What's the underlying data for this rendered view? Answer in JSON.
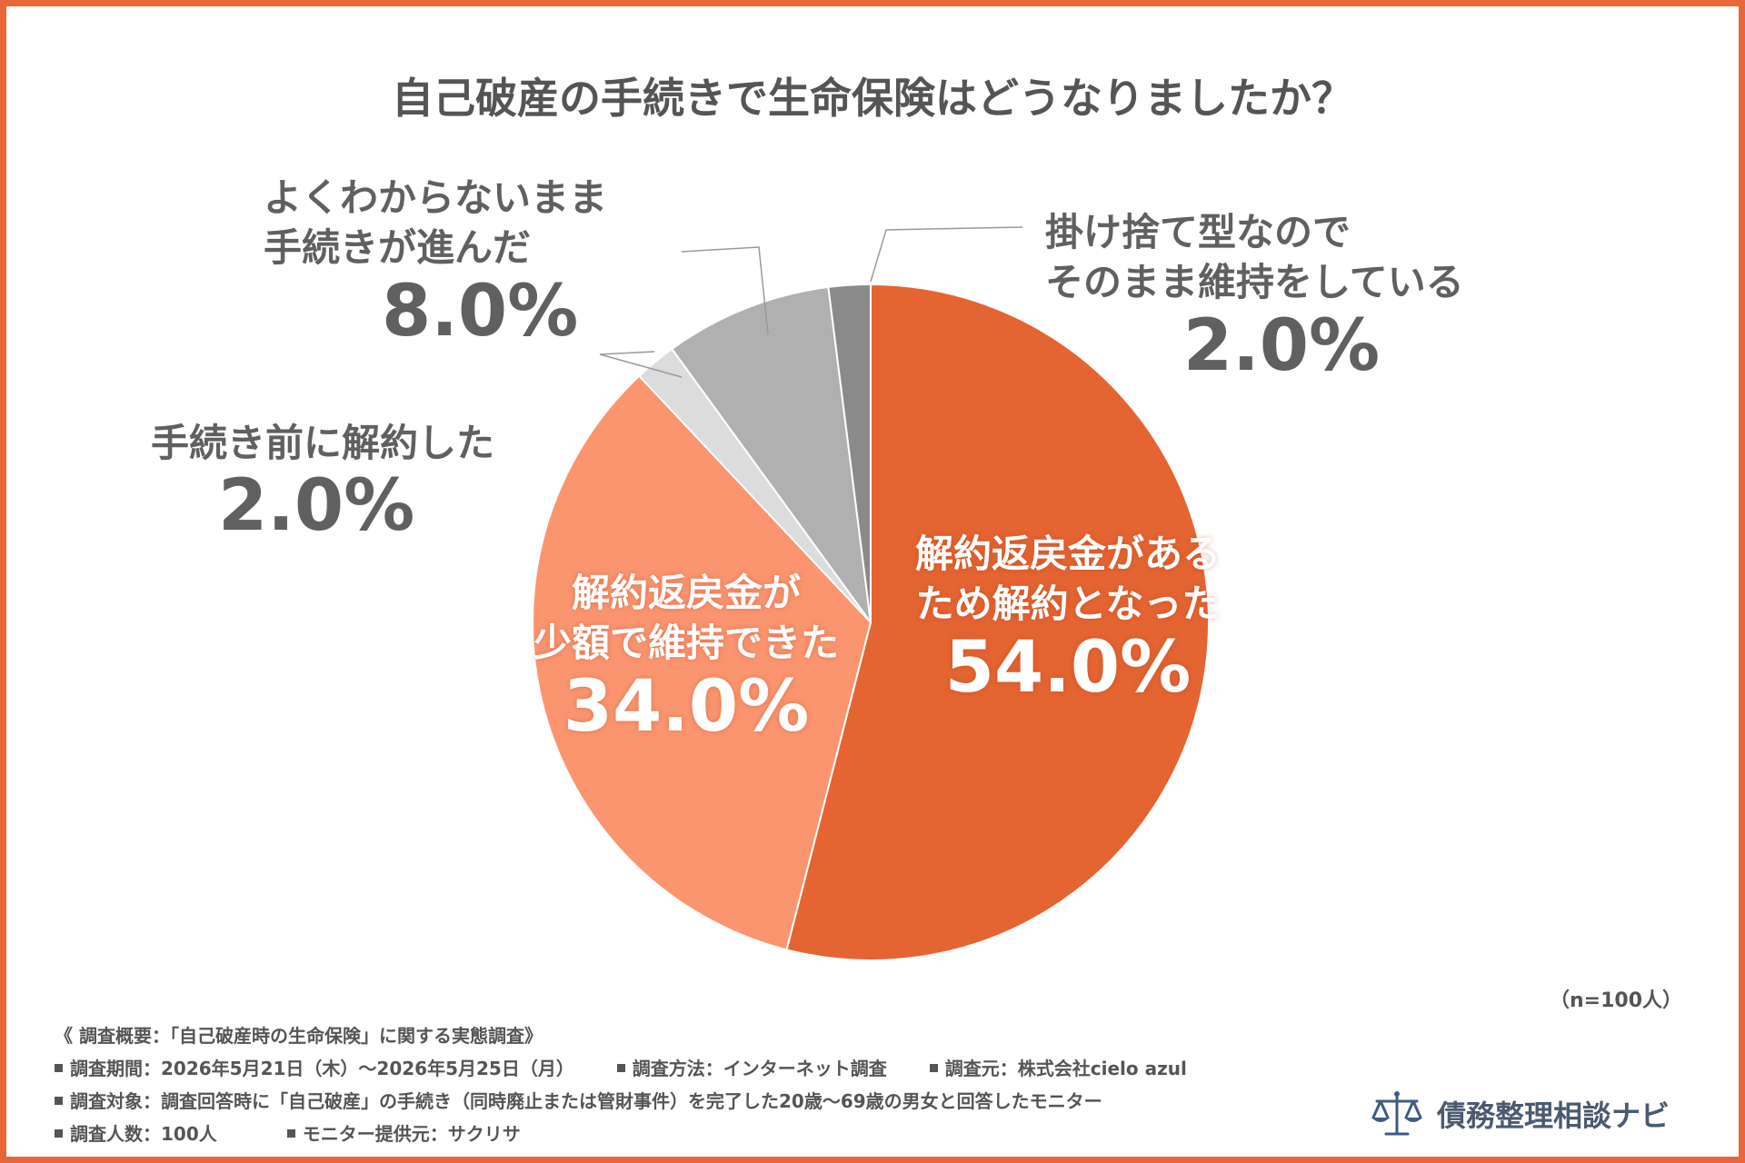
{
  "title": "自己破産の手続きで生命保険はどうなりましたか？",
  "chart_data": {
    "type": "pie",
    "title": "自己破産の手続きで生命保険はどうなりましたか？",
    "slices": [
      {
        "label_lines": [
          "解約返戻金がある",
          "ため解約となった"
        ],
        "value": 54.0,
        "display": "54.0%",
        "color": "#e46432"
      },
      {
        "label_lines": [
          "解約返戻金が",
          "少額で維持できた"
        ],
        "value": 34.0,
        "display": "34.0%",
        "color": "#fb9570"
      },
      {
        "label_lines": [
          "手続き前に解約した"
        ],
        "value": 2.0,
        "display": "2.0%",
        "color": "#dcdcdc"
      },
      {
        "label_lines": [
          "よくわからないまま",
          "手続きが進んだ"
        ],
        "value": 8.0,
        "display": "8.0%",
        "color": "#b0b0b0"
      },
      {
        "label_lines": [
          "掛け捨て型なので",
          "そのまま維持をしている"
        ],
        "value": 2.0,
        "display": "2.0%",
        "color": "#8a8a8a"
      }
    ],
    "start_angle": "12 o'clock",
    "direction": "clockwise",
    "sample_size": "（n=100人）"
  },
  "notes": {
    "heading": "《 調査概要：「自己破産時の生命保険」に関する実態調査》",
    "period": "調査期間：2026年5月21日（木）～2026年5月25日（月）",
    "method": "調査方法：インターネット調査",
    "source": "調査元：株式会社cielo azul",
    "target": "調査対象：調査回答時に「自己破産」の手続き（同時廃止または管財事件）を完了した20歳～69歳の男女と回答したモニター",
    "count": "調査人数：100人",
    "provider": "モニター提供元：サクリサ"
  },
  "brand": {
    "name": "債務整理相談ナビ",
    "icon": "scales-of-justice-icon",
    "color": "#3f5a86"
  },
  "colors": {
    "frame": "#e8673a",
    "text": "#555555"
  }
}
